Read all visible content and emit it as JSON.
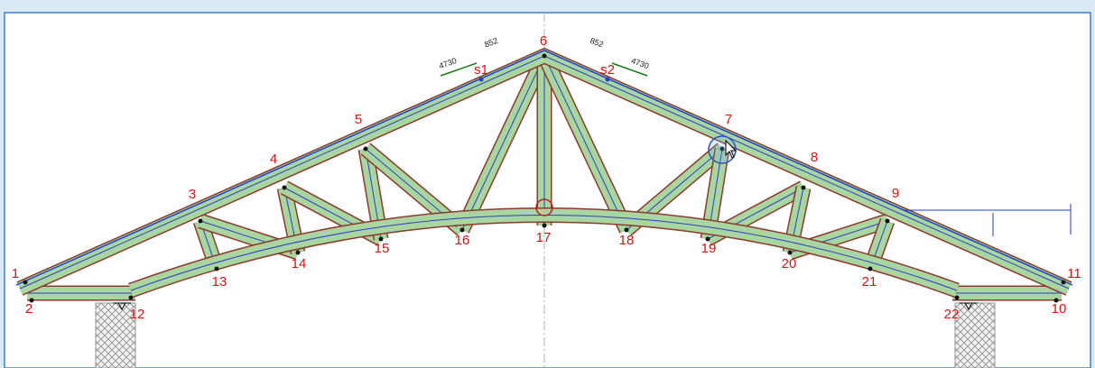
{
  "nodes": [
    {
      "label": "1"
    },
    {
      "label": "2"
    },
    {
      "label": "3"
    },
    {
      "label": "4"
    },
    {
      "label": "5"
    },
    {
      "label": "6"
    },
    {
      "label": "7"
    },
    {
      "label": "8"
    },
    {
      "label": "9"
    },
    {
      "label": "10"
    },
    {
      "label": "11"
    },
    {
      "label": "12"
    },
    {
      "label": "13"
    },
    {
      "label": "14"
    },
    {
      "label": "15"
    },
    {
      "label": "16"
    },
    {
      "label": "17"
    },
    {
      "label": "18"
    },
    {
      "label": "19"
    },
    {
      "label": "20"
    },
    {
      "label": "21"
    },
    {
      "label": "22"
    }
  ],
  "sections": [
    {
      "label": "s1"
    },
    {
      "label": "s2"
    }
  ],
  "loads": [
    {
      "force": "4730",
      "angle": "852"
    },
    {
      "force": "4730",
      "angle": "852"
    }
  ]
}
